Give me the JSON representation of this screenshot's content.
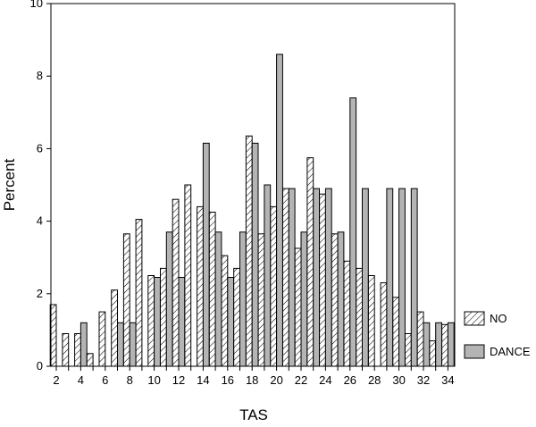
{
  "chart_data": {
    "type": "bar",
    "title": "",
    "xlabel": "TAS",
    "ylabel": "Percent",
    "ylim": [
      0,
      10
    ],
    "yticks": [
      "0",
      "2",
      "4",
      "6",
      "8",
      "10"
    ],
    "xticks": [
      "2",
      "4",
      "6",
      "8",
      "10",
      "12",
      "14",
      "16",
      "18",
      "20",
      "22",
      "24",
      "26",
      "28",
      "30",
      "32",
      "34"
    ],
    "x": [
      2,
      3,
      4,
      5,
      6,
      7,
      8,
      9,
      10,
      11,
      12,
      13,
      14,
      15,
      16,
      17,
      18,
      19,
      20,
      21,
      22,
      23,
      24,
      25,
      26,
      27,
      28,
      29,
      30,
      31,
      32,
      33,
      34
    ],
    "grid": false,
    "legend_position": "right",
    "series": [
      {
        "name": "NO",
        "pattern": "hatched",
        "color": "#ffffff",
        "values": [
          1.7,
          0.9,
          0.9,
          0.35,
          1.5,
          2.1,
          3.65,
          4.05,
          2.5,
          2.7,
          4.6,
          5.0,
          4.4,
          4.25,
          3.05,
          2.7,
          6.35,
          3.65,
          4.4,
          4.9,
          3.25,
          5.75,
          4.75,
          3.65,
          2.9,
          2.7,
          2.5,
          2.3,
          1.9,
          0.9,
          1.5,
          0.7,
          1.15
        ]
      },
      {
        "name": "DANCE",
        "pattern": "solid",
        "color": "#b4b4b4",
        "values": [
          0,
          0,
          1.2,
          0,
          0,
          1.2,
          1.2,
          0,
          2.45,
          3.7,
          2.45,
          0,
          6.15,
          3.7,
          2.45,
          3.7,
          6.15,
          5.0,
          8.6,
          4.9,
          3.7,
          4.9,
          4.9,
          3.7,
          7.4,
          4.9,
          0,
          4.9,
          4.9,
          4.9,
          1.2,
          1.2,
          1.2
        ]
      }
    ]
  },
  "colors": {
    "dance_fill": "#b4b4b4",
    "no_fill": "#ffffff",
    "stroke": "#000000"
  }
}
